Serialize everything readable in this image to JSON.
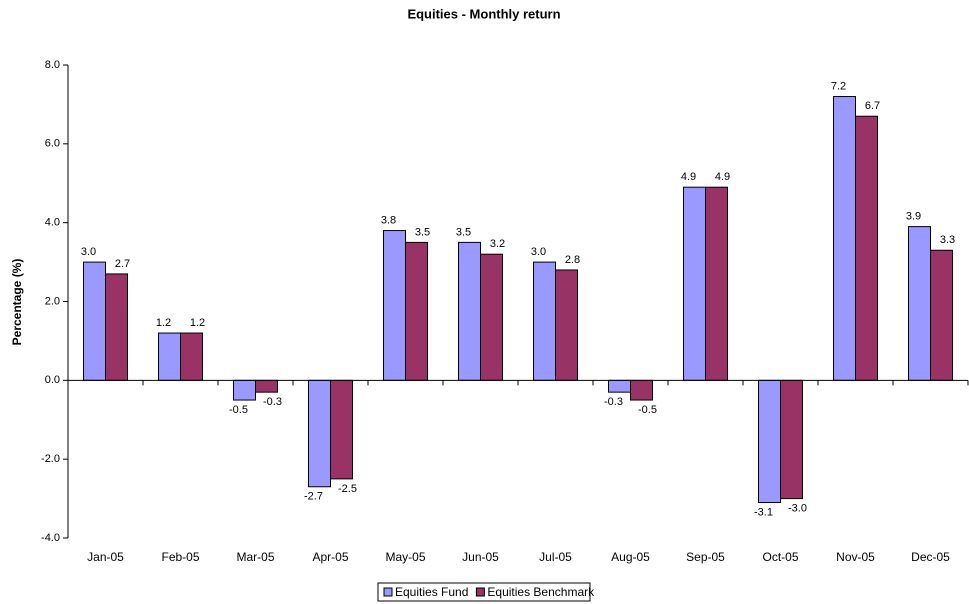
{
  "chart_data": {
    "type": "bar",
    "title": "Equities - Monthly return",
    "y_label": "Percentage (%)",
    "categories": [
      "Jan-05",
      "Feb-05",
      "Mar-05",
      "Apr-05",
      "May-05",
      "Jun-05",
      "Jul-05",
      "Aug-05",
      "Sep-05",
      "Oct-05",
      "Nov-05",
      "Dec-05"
    ],
    "series": [
      {
        "name": "Equities Fund",
        "color": "#9999ff",
        "values": [
          3.0,
          1.2,
          -0.5,
          -2.7,
          3.8,
          3.5,
          3.0,
          -0.3,
          4.9,
          -3.1,
          7.2,
          3.9
        ],
        "value_labels": [
          "3.0",
          "1.2",
          "-0.5",
          "-2.7",
          "3.8",
          "3.5",
          "3.0",
          "-0.3",
          "4.9",
          "-3.1",
          "7.2",
          "3.9"
        ]
      },
      {
        "name": "Equities Benchmark",
        "color": "#993366",
        "values": [
          2.7,
          1.2,
          -0.3,
          -2.5,
          3.5,
          3.2,
          2.8,
          -0.5,
          4.9,
          -3.0,
          6.7,
          3.3
        ],
        "value_labels": [
          "2.7",
          "1.2",
          "-0.3",
          "-2.5",
          "3.5",
          "3.2",
          "2.8",
          "-0.5",
          "4.9",
          "-3.0",
          "6.7",
          "3.3"
        ]
      }
    ],
    "ylim": [
      -4,
      8
    ],
    "yticks": [
      {
        "value": -4,
        "label": "-4.0"
      },
      {
        "value": -2,
        "label": "-2.0"
      },
      {
        "value": 0,
        "label": "0.0"
      },
      {
        "value": 2,
        "label": "2.0"
      },
      {
        "value": 4,
        "label": "4.0"
      },
      {
        "value": 6,
        "label": "6.0"
      },
      {
        "value": 8,
        "label": "8.0"
      }
    ],
    "grid": false,
    "legend": "bottom"
  }
}
